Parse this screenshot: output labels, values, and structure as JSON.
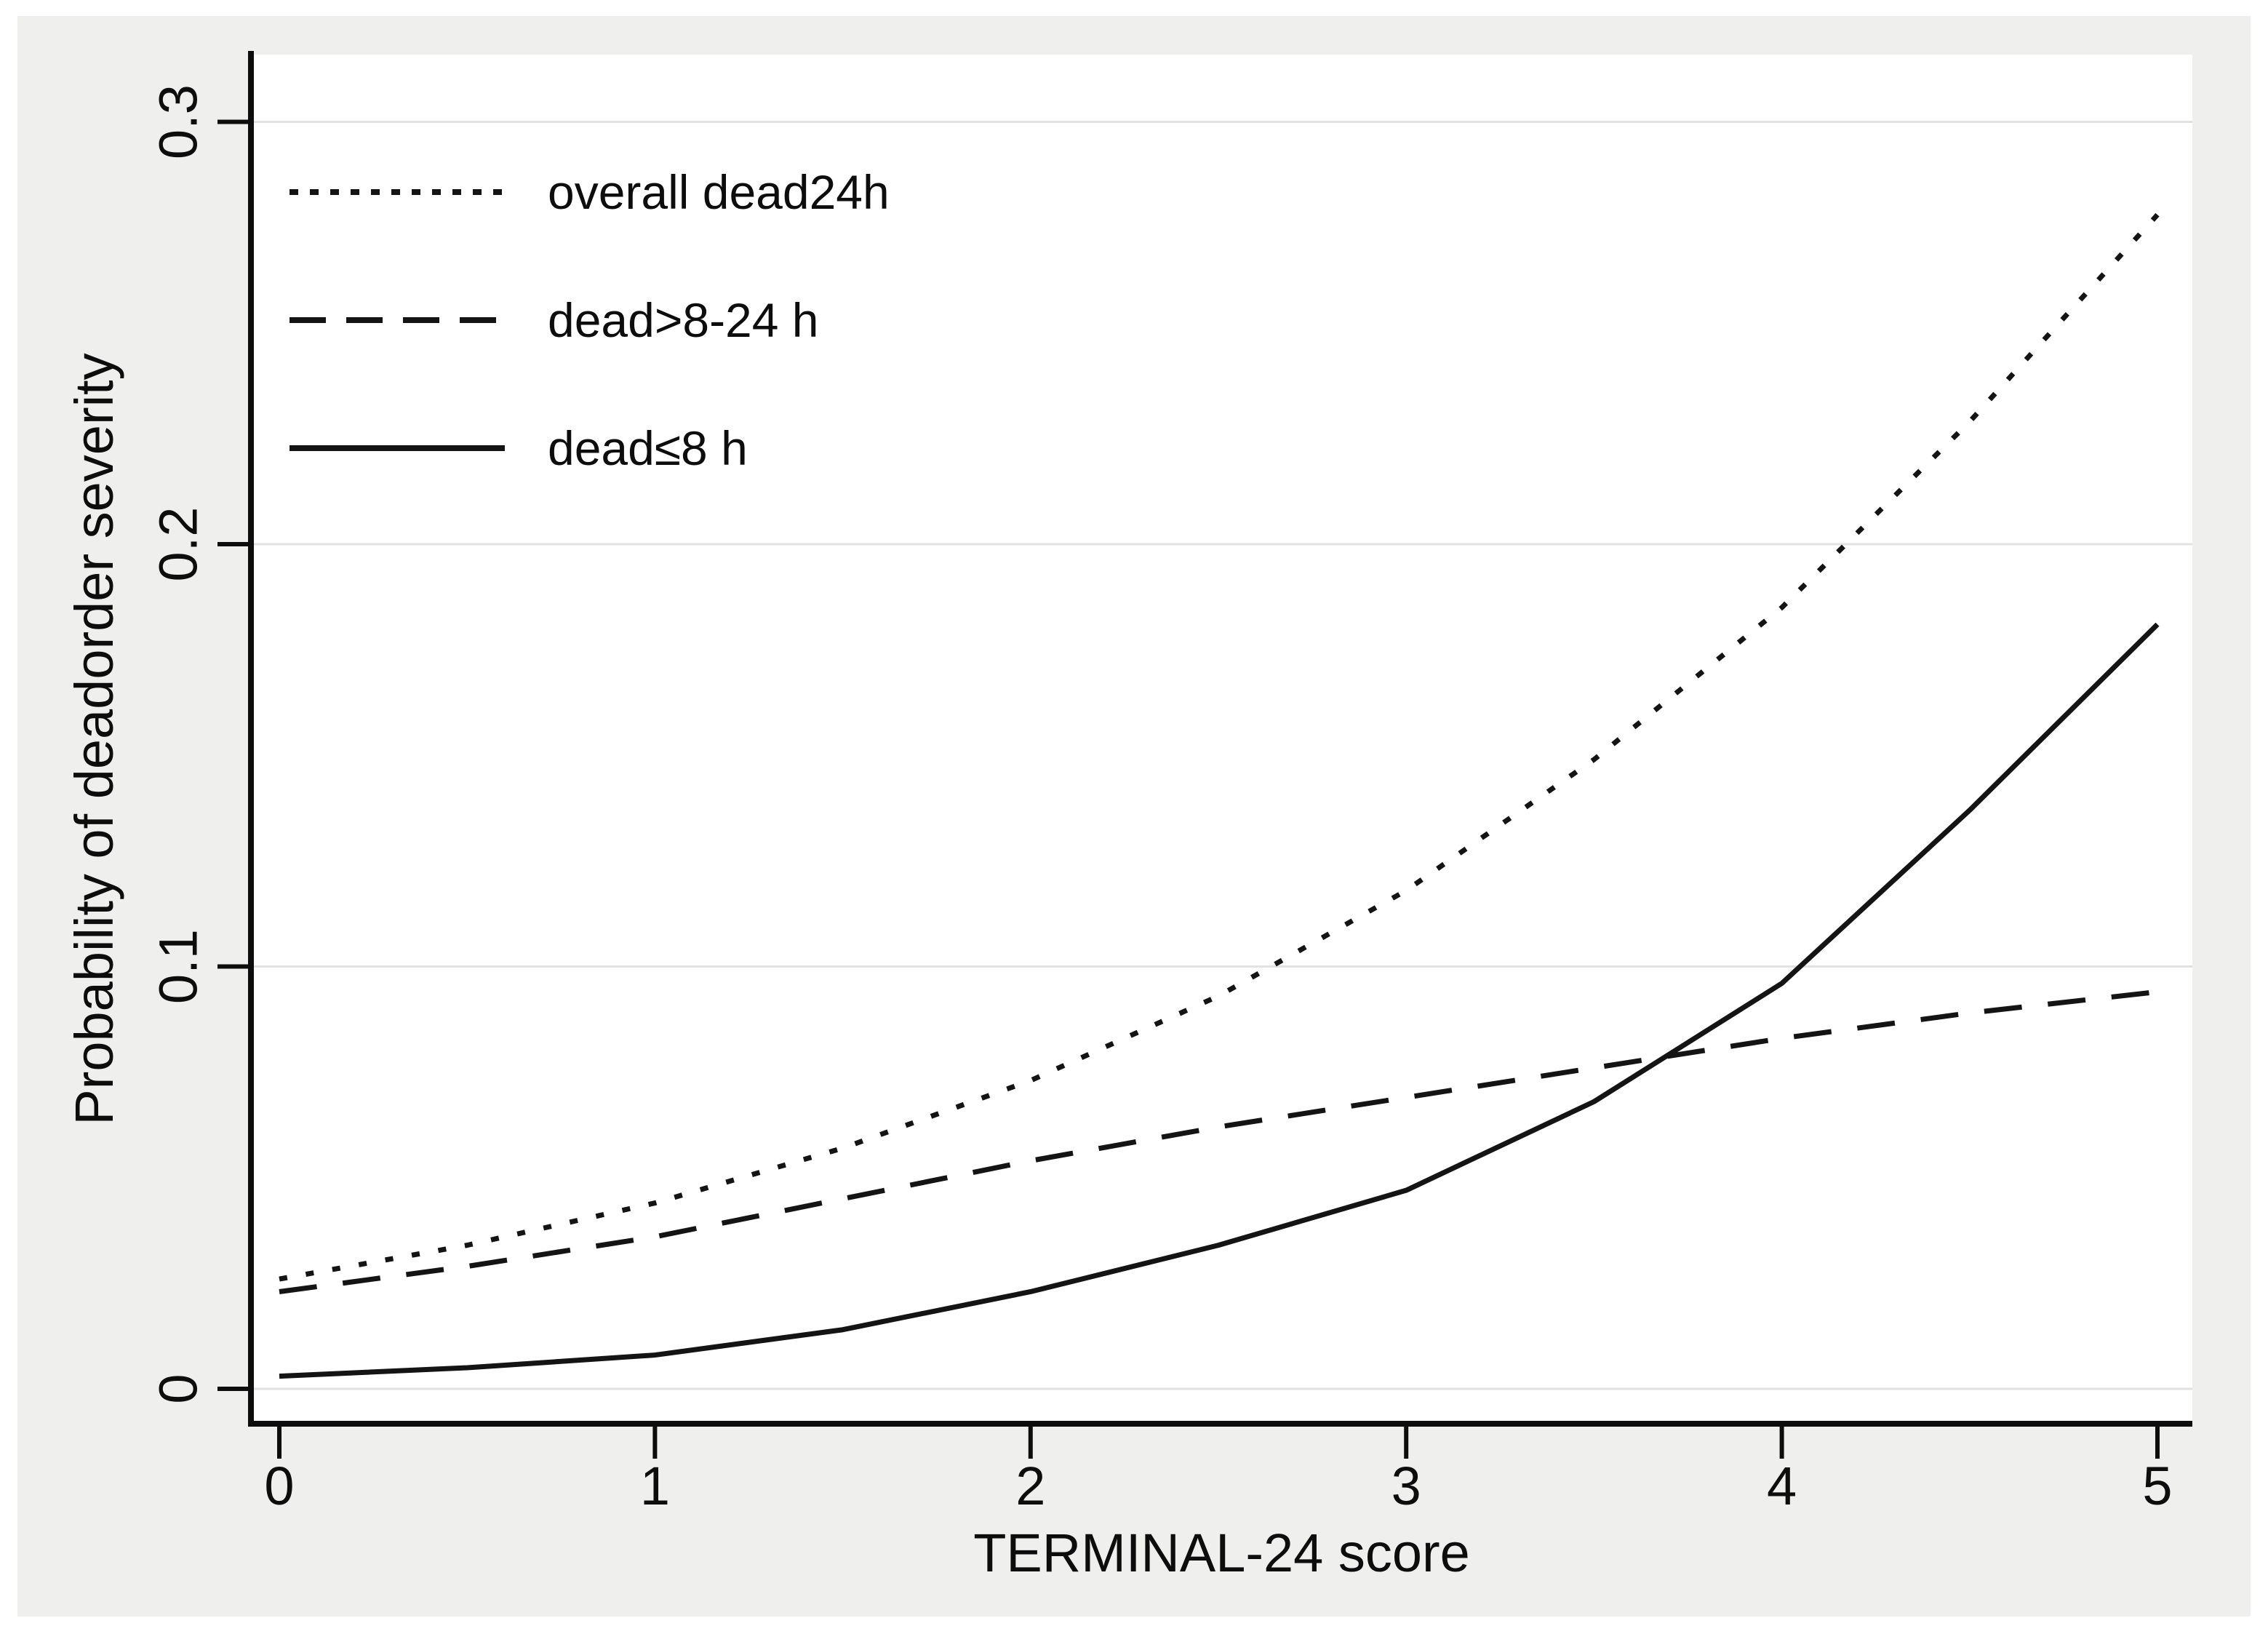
{
  "figure": {
    "background_color": "#efefed",
    "plot_background_color": "#ffffff",
    "gridline_color": "#e2e2e2",
    "axis_color": "#0d0d0d",
    "series_color": "#141414"
  },
  "chart_data": {
    "type": "line",
    "title": "",
    "xlabel": "TERMINAL-24 score",
    "ylabel": "Probability of deadorder severity",
    "xlim": [
      0,
      5
    ],
    "ylim": [
      0,
      0.316
    ],
    "grid": "horizontal-only",
    "legend_position": "top-left-inside",
    "xticks": [
      "0",
      "1",
      "2",
      "3",
      "4",
      "5"
    ],
    "ytick_values": [
      0,
      0.1,
      0.2,
      0.3
    ],
    "ytick_labels": [
      "0",
      "0.1",
      "0.2",
      "0.3"
    ],
    "x": [
      0,
      0.5,
      1,
      1.5,
      2,
      2.5,
      3,
      3.5,
      4,
      4.5,
      5
    ],
    "series": [
      {
        "name": "overall dead24h",
        "style": "dotted",
        "values": [
          0.026,
          0.034,
          0.044,
          0.057,
          0.073,
          0.093,
          0.118,
          0.149,
          0.185,
          0.229,
          0.278
        ]
      },
      {
        "name": "dead>8-24 h",
        "style": "dashed",
        "values": [
          0.023,
          0.029,
          0.036,
          0.045,
          0.054,
          0.062,
          0.069,
          0.076,
          0.083,
          0.089,
          0.094
        ]
      },
      {
        "name": "dead≤8 h",
        "style": "solid",
        "values": [
          0.003,
          0.005,
          0.008,
          0.014,
          0.023,
          0.034,
          0.047,
          0.068,
          0.096,
          0.137,
          0.181
        ]
      }
    ]
  }
}
